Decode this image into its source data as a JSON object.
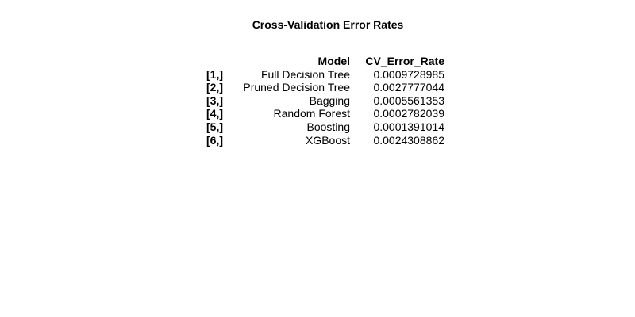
{
  "chart_data": {
    "type": "table",
    "title": "Cross-Validation Error Rates",
    "columns": [
      "Model",
      "CV_Error_Rate"
    ],
    "rows": [
      {
        "label": "[1,]",
        "model": "Full Decision Tree",
        "cv_error_rate": "0.0009728985"
      },
      {
        "label": "[2,]",
        "model": "Pruned Decision Tree",
        "cv_error_rate": "0.0027777044"
      },
      {
        "label": "[3,]",
        "model": "Bagging",
        "cv_error_rate": "0.0005561353"
      },
      {
        "label": "[4,]",
        "model": "Random Forest",
        "cv_error_rate": "0.0002782039"
      },
      {
        "label": "[5,]",
        "model": "Boosting",
        "cv_error_rate": "0.0001391014"
      },
      {
        "label": "[6,]",
        "model": "XGBoost",
        "cv_error_rate": "0.0024308862"
      }
    ]
  }
}
